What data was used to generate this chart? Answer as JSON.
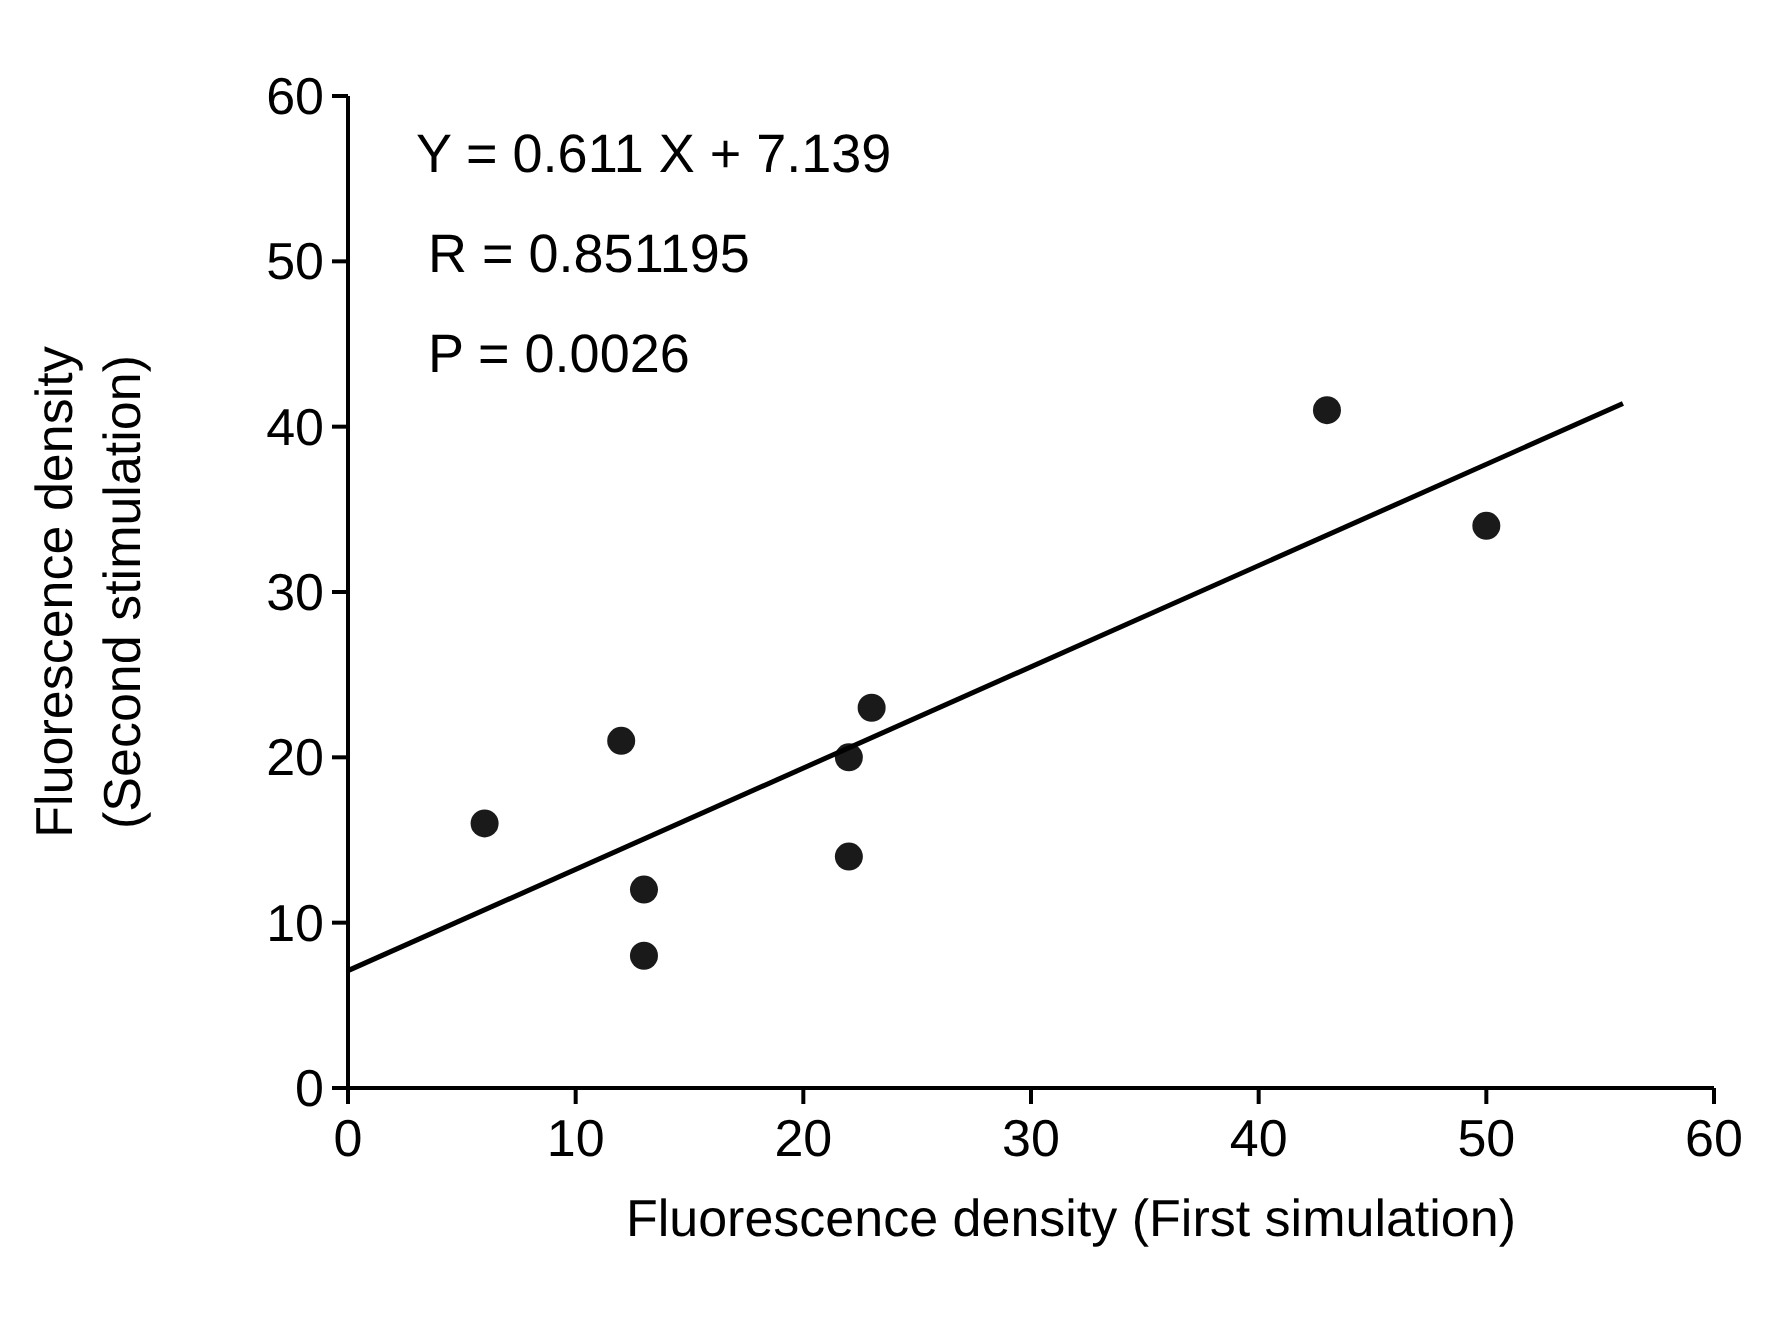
{
  "chart_data": {
    "type": "scatter",
    "xlabel": "Fluorescence density  (First simulation)",
    "ylabel": "Fluorescence density\n(Second stimulation)",
    "xlim": [
      0,
      60
    ],
    "ylim": [
      0,
      60
    ],
    "xticks": [
      0,
      10,
      20,
      30,
      40,
      50,
      60
    ],
    "yticks": [
      0,
      10,
      20,
      30,
      40,
      50,
      60
    ],
    "grid": false,
    "annotations": [
      "Y = 0.611 X + 7.139",
      "R = 0.851195",
      "P = 0.0026"
    ],
    "series": [
      {
        "color": "#1a1a1a",
        "marker": "circle",
        "x": [
          6,
          12,
          13,
          13,
          22,
          22,
          23,
          43,
          50
        ],
        "values": [
          16,
          21,
          12,
          8,
          20,
          14,
          23,
          41,
          34
        ]
      },
      {
        "type": "line",
        "color": "#000000",
        "marker": "none",
        "x": [
          0,
          56
        ],
        "values": [
          7.1,
          41.4
        ],
        "line_style": "solid"
      }
    ]
  }
}
